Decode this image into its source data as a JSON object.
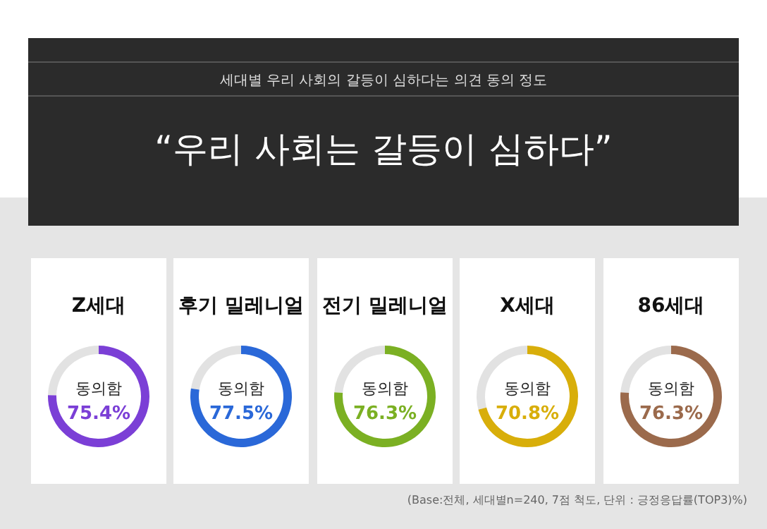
{
  "chart_data": [
    {
      "type": "other",
      "subtitle": "세대별 우리 사회의 갈등이 심하다는 의견 동의 정도",
      "title": "“우리 사회는 갈등이 심하다”",
      "annotations": [
        "(Base:전체, 세대별n=240, 7점 척도, 단위 : 긍정응답률(TOP3)%)"
      ]
    },
    {
      "type": "donut",
      "title": "Z세대",
      "categories": [
        "동의함",
        null
      ],
      "values": [
        75.4,
        24.6
      ],
      "colors": [
        "#7b3fd6",
        "#e2e2e2"
      ],
      "value_labels": [
        "75.4%",
        null
      ]
    },
    {
      "type": "donut",
      "title": "후기 밀레니얼",
      "categories": [
        "동의함",
        null
      ],
      "values": [
        77.5,
        22.5
      ],
      "colors": [
        "#2a68d8",
        "#e2e2e2"
      ],
      "value_labels": [
        "77.5%",
        null
      ]
    },
    {
      "type": "donut",
      "title": "전기 밀레니얼",
      "categories": [
        "동의함",
        null
      ],
      "values": [
        76.3,
        23.7
      ],
      "colors": [
        "#7bb023",
        "#e2e2e2"
      ],
      "value_labels": [
        "76.3%",
        null
      ]
    },
    {
      "type": "donut",
      "title": "X세대",
      "categories": [
        "동의함",
        null
      ],
      "values": [
        70.8,
        29.2
      ],
      "colors": [
        "#d8ae0a",
        "#e2e2e2"
      ],
      "value_labels": [
        "70.8%",
        null
      ]
    },
    {
      "type": "donut",
      "title": "86세대",
      "categories": [
        "동의함",
        null
      ],
      "values": [
        76.3,
        23.7
      ],
      "colors": [
        "#9b6a4c",
        "#e2e2e2"
      ],
      "value_labels": [
        "76.3%",
        null
      ]
    }
  ]
}
